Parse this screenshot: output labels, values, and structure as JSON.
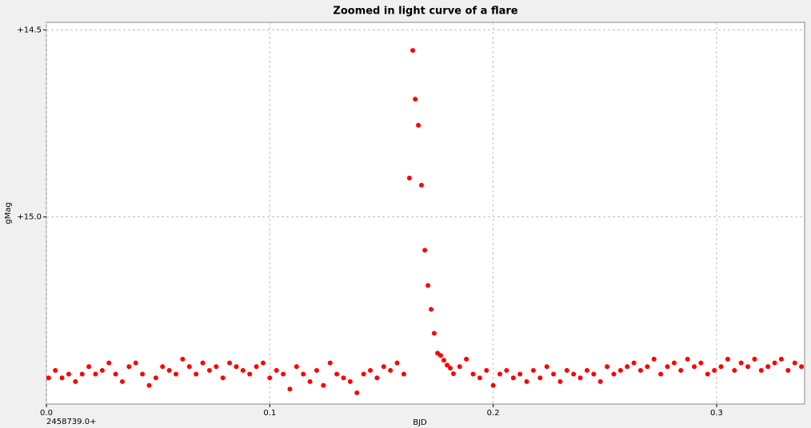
{
  "chart_data": {
    "type": "scatter",
    "title": "Zoomed in light curve of a flare",
    "xlabel": "BJD",
    "ylabel": "gMag",
    "x_offset_label": "2458739.0+",
    "xlim": [
      0,
      0.3394
    ],
    "ylim": [
      15.5,
      14.48
    ],
    "xticks": [
      {
        "value": 0,
        "label": "0.0"
      },
      0.1,
      0.2,
      0.3
    ],
    "yticks": [
      {
        "value": 14.5,
        "label": "+14.5"
      },
      {
        "value": 15.0,
        "label": "+15.0"
      }
    ],
    "grid": true,
    "series": [
      {
        "color": "#ff0000",
        "x": [
          0.001,
          0.004,
          0.007,
          0.01,
          0.013,
          0.016,
          0.019,
          0.022,
          0.025,
          0.028,
          0.031,
          0.034,
          0.037,
          0.04,
          0.043,
          0.046,
          0.049,
          0.052,
          0.055,
          0.058,
          0.061,
          0.064,
          0.067,
          0.07,
          0.073,
          0.076,
          0.079,
          0.082,
          0.085,
          0.088,
          0.091,
          0.094,
          0.097,
          0.1,
          0.103,
          0.106,
          0.109,
          0.112,
          0.115,
          0.118,
          0.121,
          0.124,
          0.127,
          0.13,
          0.133,
          0.136,
          0.139,
          0.142,
          0.145,
          0.148,
          0.151,
          0.154,
          0.157,
          0.16,
          0.1625,
          0.164,
          0.1651,
          0.1665,
          0.1679,
          0.1694,
          0.1708,
          0.1722,
          0.1736,
          0.1751,
          0.1765,
          0.1779,
          0.1794,
          0.1808,
          0.1822,
          0.185,
          0.188,
          0.191,
          0.194,
          0.197,
          0.2,
          0.203,
          0.206,
          0.209,
          0.212,
          0.215,
          0.218,
          0.221,
          0.224,
          0.227,
          0.23,
          0.233,
          0.236,
          0.239,
          0.242,
          0.245,
          0.248,
          0.251,
          0.254,
          0.257,
          0.26,
          0.263,
          0.266,
          0.269,
          0.272,
          0.275,
          0.278,
          0.281,
          0.284,
          0.287,
          0.29,
          0.293,
          0.296,
          0.299,
          0.302,
          0.305,
          0.308,
          0.311,
          0.314,
          0.317,
          0.32,
          0.323,
          0.326,
          0.329,
          0.332,
          0.335,
          0.338
        ],
        "values": [
          15.43,
          15.41,
          15.43,
          15.42,
          15.44,
          15.42,
          15.4,
          15.42,
          15.41,
          15.39,
          15.42,
          15.44,
          15.4,
          15.39,
          15.42,
          15.45,
          15.43,
          15.4,
          15.41,
          15.42,
          15.38,
          15.4,
          15.42,
          15.39,
          15.41,
          15.4,
          15.43,
          15.39,
          15.4,
          15.41,
          15.42,
          15.4,
          15.39,
          15.43,
          15.41,
          15.42,
          15.46,
          15.4,
          15.42,
          15.44,
          15.41,
          15.45,
          15.39,
          15.42,
          15.43,
          15.44,
          15.47,
          15.42,
          15.41,
          15.43,
          15.4,
          15.41,
          15.39,
          15.42,
          14.896,
          14.555,
          14.685,
          14.755,
          14.915,
          15.089,
          15.183,
          15.247,
          15.311,
          15.364,
          15.37,
          15.383,
          15.396,
          15.404,
          15.419,
          15.4,
          15.38,
          15.42,
          15.43,
          15.41,
          15.45,
          15.42,
          15.41,
          15.43,
          15.42,
          15.44,
          15.41,
          15.43,
          15.4,
          15.42,
          15.44,
          15.41,
          15.42,
          15.43,
          15.41,
          15.42,
          15.44,
          15.4,
          15.42,
          15.41,
          15.4,
          15.39,
          15.41,
          15.4,
          15.38,
          15.42,
          15.4,
          15.39,
          15.41,
          15.38,
          15.4,
          15.39,
          15.42,
          15.41,
          15.4,
          15.38,
          15.41,
          15.39,
          15.4,
          15.38,
          15.41,
          15.4,
          15.39,
          15.38,
          15.41,
          15.39,
          15.4
        ]
      }
    ]
  }
}
